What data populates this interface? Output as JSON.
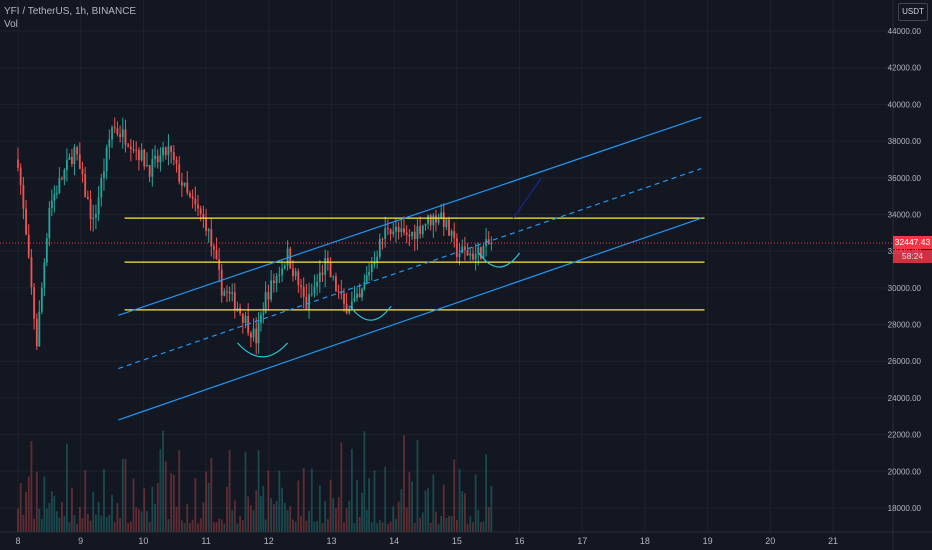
{
  "header": {
    "symbol_line": "YFI / TetherUS, 1h, BINANCE",
    "volume_label": "Vol"
  },
  "currency_button": "USDT",
  "last_price_label": "32447.43",
  "countdown_label": "58:24",
  "colors": {
    "background": "#131722",
    "candle_up": "#26a69a",
    "candle_down": "#ef5350",
    "channel_lines": "#2196f3",
    "horizontal_levels": "#ffeb3b",
    "current_price": "#f23645",
    "projection": "#1a237e"
  },
  "chart_data": {
    "type": "candlestick",
    "title": "",
    "xlabel": "",
    "ylabel": "",
    "x_ticks": [
      "8",
      "9",
      "10",
      "11",
      "12",
      "13",
      "14",
      "15",
      "16",
      "17",
      "18",
      "19",
      "20",
      "21"
    ],
    "y_ticks": [
      "18000.00",
      "20000.00",
      "22000.00",
      "24000.00",
      "26000.00",
      "28000.00",
      "30000.00",
      "32000.00",
      "34000.00",
      "36000.00",
      "38000.00",
      "40000.00",
      "42000.00",
      "44000.00"
    ],
    "ylim": [
      16500,
      45500
    ],
    "xlim_days": [
      7.8,
      22.5
    ],
    "last_price": 32447.43,
    "horizontal_levels": [
      33800,
      31400,
      28800
    ],
    "channel": {
      "upper": [
        [
          9.6,
          28500
        ],
        [
          18.9,
          39300
        ]
      ],
      "middle_dashed": [
        [
          9.6,
          25600
        ],
        [
          18.9,
          36500
        ]
      ],
      "lower": [
        [
          9.6,
          22800
        ],
        [
          18.9,
          33800
        ]
      ]
    },
    "key_points": [
      [
        8.0,
        37000
      ],
      [
        8.3,
        27000
      ],
      [
        8.5,
        34500
      ],
      [
        8.9,
        37500
      ],
      [
        9.2,
        33500
      ],
      [
        9.5,
        38800
      ],
      [
        9.8,
        38000
      ],
      [
        10.1,
        36500
      ],
      [
        10.4,
        37500
      ],
      [
        10.7,
        35000
      ],
      [
        11.0,
        33500
      ],
      [
        11.25,
        30000
      ],
      [
        11.5,
        29000
      ],
      [
        11.8,
        27200
      ],
      [
        11.95,
        29500
      ],
      [
        12.3,
        31800
      ],
      [
        12.6,
        29000
      ],
      [
        12.9,
        31300
      ],
      [
        13.2,
        29000
      ],
      [
        13.45,
        29300
      ],
      [
        13.6,
        31000
      ],
      [
        13.9,
        33400
      ],
      [
        14.2,
        32700
      ],
      [
        14.5,
        33600
      ],
      [
        14.75,
        34000
      ],
      [
        15.0,
        32000
      ],
      [
        15.3,
        31800
      ],
      [
        15.55,
        32447
      ]
    ]
  }
}
